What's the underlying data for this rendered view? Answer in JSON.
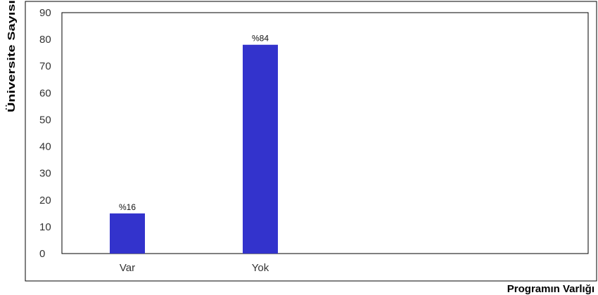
{
  "chart_data": {
    "type": "bar",
    "categories": [
      "Var",
      "Yok"
    ],
    "values": [
      15,
      78
    ],
    "data_labels": [
      "%16",
      "%84"
    ],
    "xlabel": "Programın Varlığı",
    "ylabel": "Üniversite Sayısı",
    "ylim": [
      0,
      90
    ],
    "yticks": [
      0,
      10,
      20,
      30,
      40,
      50,
      60,
      70,
      80,
      90
    ],
    "bar_color": "#3333cc",
    "grid": false
  }
}
